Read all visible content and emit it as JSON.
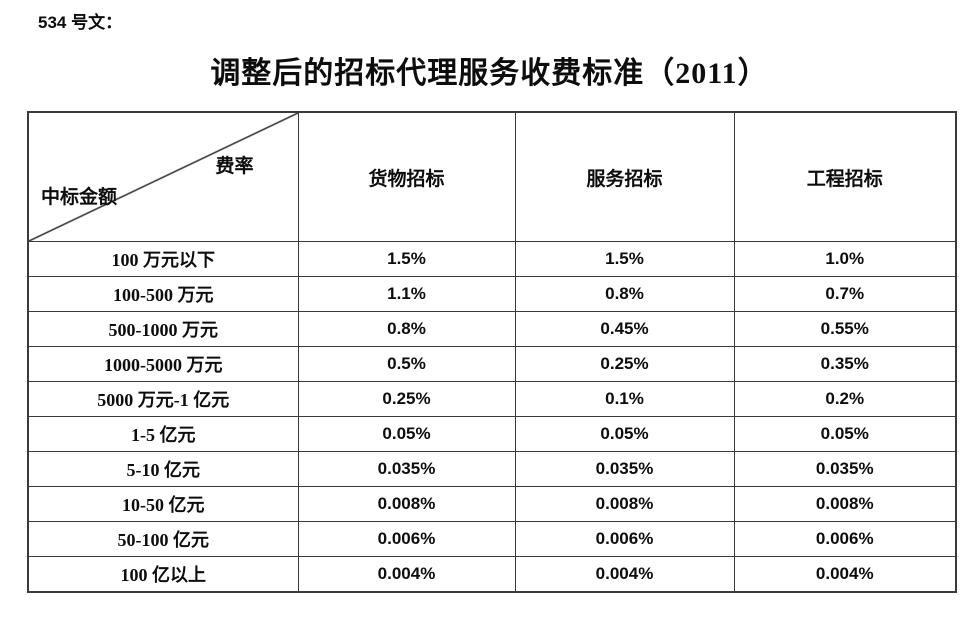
{
  "page": {
    "doc_ref": "534 号文：",
    "title": "调整后的招标代理服务收费标准（2011）"
  },
  "colors": {
    "border": "#3a3a3a",
    "text": "#0d0d0d",
    "background": "#ffffff"
  },
  "table": {
    "corner": {
      "top_right_label": "费率",
      "bottom_left_label": "中标金额"
    },
    "columns": [
      "货物招标",
      "服务招标",
      "工程招标"
    ],
    "rows": [
      {
        "label": "100 万元以下",
        "values": [
          "1.5%",
          "1.5%",
          "1.0%"
        ]
      },
      {
        "label": "100-500 万元",
        "values": [
          "1.1%",
          "0.8%",
          "0.7%"
        ]
      },
      {
        "label": "500-1000 万元",
        "values": [
          "0.8%",
          "0.45%",
          "0.55%"
        ]
      },
      {
        "label": "1000-5000 万元",
        "values": [
          "0.5%",
          "0.25%",
          "0.35%"
        ]
      },
      {
        "label": "5000 万元-1 亿元",
        "values": [
          "0.25%",
          "0.1%",
          "0.2%"
        ]
      },
      {
        "label": "1-5 亿元",
        "values": [
          "0.05%",
          "0.05%",
          "0.05%"
        ]
      },
      {
        "label": "5-10 亿元",
        "values": [
          "0.035%",
          "0.035%",
          "0.035%"
        ]
      },
      {
        "label": "10-50 亿元",
        "values": [
          "0.008%",
          "0.008%",
          "0.008%"
        ]
      },
      {
        "label": "50-100 亿元",
        "values": [
          "0.006%",
          "0.006%",
          "0.006%"
        ]
      },
      {
        "label": "100 亿以上",
        "values": [
          "0.004%",
          "0.004%",
          "0.004%"
        ]
      }
    ]
  }
}
